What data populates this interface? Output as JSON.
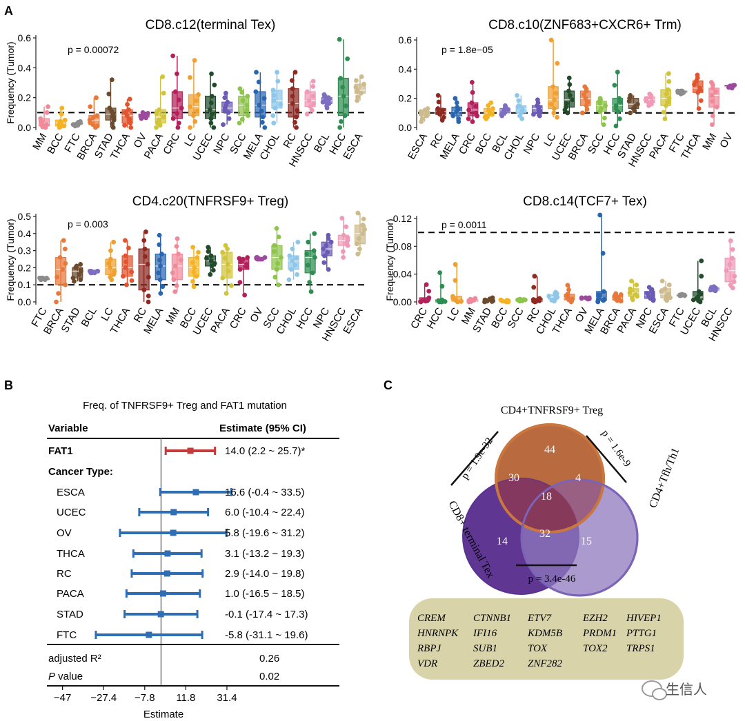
{
  "panel_labels": {
    "a": "A",
    "b": "B",
    "c": "C"
  },
  "chart_data": [
    {
      "type": "box",
      "title": "CD8.c12(terminal Tex)",
      "ylabel": "Frequency (Tumor)",
      "pvalue": "p = 0.00072",
      "ylim": [
        0,
        0.6
      ],
      "yticks": [
        "0.0",
        "0.2",
        "0.4",
        "0.6"
      ],
      "threshold": 0.1,
      "categories": [
        "MM",
        "BCC",
        "FTC",
        "BRCA",
        "STAD",
        "THCA",
        "OV",
        "PACA",
        "CRC",
        "LC",
        "UCEC",
        "NPC",
        "SCC",
        "MELA",
        "CHOL",
        "RC",
        "HNSCC",
        "BCL",
        "HCC",
        "ESCA"
      ],
      "colors": [
        "#F08A9A",
        "#F5B323",
        "#8C8C8C",
        "#E8793A",
        "#6B4A2E",
        "#E2542E",
        "#9B4A9E",
        "#D1C43A",
        "#B4205A",
        "#F0A030",
        "#214B2B",
        "#6C5BB6",
        "#8DC44A",
        "#2A66B0",
        "#8EC7EA",
        "#8E2A22",
        "#F09AB6",
        "#7D6EC0",
        "#2E8E52",
        "#CDBB8E"
      ],
      "stats": [
        [
          0.0,
          0.01,
          0.03,
          0.06,
          0.14
        ],
        [
          0.0,
          0.01,
          0.03,
          0.05,
          0.13
        ],
        [
          0.01,
          0.02,
          0.02,
          0.03,
          0.04
        ],
        [
          0.0,
          0.02,
          0.05,
          0.08,
          0.2
        ],
        [
          0.0,
          0.05,
          0.09,
          0.13,
          0.32
        ],
        [
          0.0,
          0.03,
          0.08,
          0.12,
          0.19
        ],
        [
          0.06,
          0.07,
          0.08,
          0.09,
          0.1
        ],
        [
          0.0,
          0.03,
          0.07,
          0.12,
          0.34
        ],
        [
          0.0,
          0.06,
          0.13,
          0.24,
          0.48
        ],
        [
          0.0,
          0.08,
          0.14,
          0.22,
          0.45
        ],
        [
          0.0,
          0.06,
          0.12,
          0.21,
          0.36
        ],
        [
          0.02,
          0.1,
          0.13,
          0.17,
          0.23
        ],
        [
          0.03,
          0.08,
          0.15,
          0.21,
          0.26
        ],
        [
          0.0,
          0.07,
          0.15,
          0.24,
          0.37
        ],
        [
          0.03,
          0.13,
          0.18,
          0.25,
          0.37
        ],
        [
          0.0,
          0.07,
          0.16,
          0.26,
          0.37
        ],
        [
          0.09,
          0.14,
          0.18,
          0.24,
          0.31
        ],
        [
          0.13,
          0.16,
          0.18,
          0.2,
          0.22
        ],
        [
          0.0,
          0.08,
          0.21,
          0.33,
          0.59
        ],
        [
          0.18,
          0.23,
          0.25,
          0.29,
          0.34
        ]
      ]
    },
    {
      "type": "box",
      "title": "CD8.c10(ZNF683+CXCR6+ Trm)",
      "ylabel": "",
      "pvalue": "p = 1.8e−05",
      "ylim": [
        0,
        0.6
      ],
      "yticks": [
        "0.0",
        "0.2",
        "0.4",
        "0.6"
      ],
      "threshold": 0.1,
      "categories": [
        "ESCA",
        "RC",
        "MELA",
        "CRC",
        "BCC",
        "BCL",
        "CHOL",
        "NPC",
        "LC",
        "UCEC",
        "BRCA",
        "SCC",
        "HCC",
        "STAD",
        "HNSCC",
        "PACA",
        "FTC",
        "THCA",
        "MM",
        "OV"
      ],
      "colors": [
        "#CDBB8E",
        "#8E2A22",
        "#2A66B0",
        "#B4205A",
        "#F5B323",
        "#7D6EC0",
        "#8EC7EA",
        "#6C5BB6",
        "#F0A030",
        "#214B2B",
        "#E8793A",
        "#8DC44A",
        "#2E8E52",
        "#6B4A2E",
        "#F09AB6",
        "#D1C43A",
        "#8C8C8C",
        "#E2542E",
        "#F08A9A",
        "#9B4A9E"
      ],
      "stats": [
        [
          0.04,
          0.08,
          0.1,
          0.11,
          0.13
        ],
        [
          0.05,
          0.09,
          0.11,
          0.13,
          0.22
        ],
        [
          0.04,
          0.08,
          0.11,
          0.14,
          0.2
        ],
        [
          0.04,
          0.08,
          0.12,
          0.17,
          0.31
        ],
        [
          0.06,
          0.08,
          0.1,
          0.13,
          0.17
        ],
        [
          0.08,
          0.1,
          0.12,
          0.13,
          0.15
        ],
        [
          0.06,
          0.1,
          0.13,
          0.15,
          0.22
        ],
        [
          0.08,
          0.1,
          0.13,
          0.15,
          0.19
        ],
        [
          0.07,
          0.13,
          0.19,
          0.28,
          0.6
        ],
        [
          0.1,
          0.14,
          0.19,
          0.25,
          0.34
        ],
        [
          0.1,
          0.15,
          0.2,
          0.25,
          0.28
        ],
        [
          0.02,
          0.11,
          0.15,
          0.18,
          0.2
        ],
        [
          0.01,
          0.11,
          0.15,
          0.2,
          0.38
        ],
        [
          0.1,
          0.13,
          0.16,
          0.2,
          0.22
        ],
        [
          0.15,
          0.17,
          0.19,
          0.21,
          0.23
        ],
        [
          0.06,
          0.15,
          0.2,
          0.26,
          0.37
        ],
        [
          0.23,
          0.24,
          0.24,
          0.25,
          0.25
        ],
        [
          0.13,
          0.24,
          0.27,
          0.32,
          0.36
        ],
        [
          0.02,
          0.14,
          0.22,
          0.27,
          0.31
        ],
        [
          0.27,
          0.28,
          0.28,
          0.29,
          0.29
        ]
      ]
    },
    {
      "type": "box",
      "title": "CD4.c20(TNFRSF9+ Treg)",
      "ylabel": "Frequency (Tumor)",
      "pvalue": "p = 0.003",
      "ylim": [
        0,
        0.5
      ],
      "yticks": [
        "0.0",
        "0.1",
        "0.2",
        "0.3",
        "0.4",
        "0.5"
      ],
      "threshold": 0.1,
      "categories": [
        "FTC",
        "BRCA",
        "STAD",
        "BCL",
        "LC",
        "THCA",
        "RC",
        "MELA",
        "MM",
        "BCC",
        "UCEC",
        "PACA",
        "CRC",
        "OV",
        "SCC",
        "CHOL",
        "HCC",
        "NPC",
        "HNSCC",
        "ESCA"
      ],
      "colors": [
        "#8C8C8C",
        "#E8793A",
        "#6B4A2E",
        "#7D6EC0",
        "#F0A030",
        "#E2542E",
        "#8E2A22",
        "#2A66B0",
        "#F08A9A",
        "#F5B323",
        "#214B2B",
        "#D1C43A",
        "#B4205A",
        "#9B4A9E",
        "#8DC44A",
        "#8EC7EA",
        "#2E8E52",
        "#6C5BB6",
        "#F09AB6",
        "#CDBB8E"
      ],
      "stats": [
        [
          0.13,
          0.13,
          0.14,
          0.14,
          0.14
        ],
        [
          0.0,
          0.1,
          0.19,
          0.26,
          0.36
        ],
        [
          0.12,
          0.14,
          0.18,
          0.2,
          0.22
        ],
        [
          0.17,
          0.17,
          0.18,
          0.18,
          0.18
        ],
        [
          0.13,
          0.16,
          0.2,
          0.25,
          0.35
        ],
        [
          0.1,
          0.15,
          0.2,
          0.27,
          0.36
        ],
        [
          0.0,
          0.07,
          0.22,
          0.31,
          0.41
        ],
        [
          0.05,
          0.13,
          0.21,
          0.28,
          0.39
        ],
        [
          0.06,
          0.13,
          0.21,
          0.28,
          0.37
        ],
        [
          0.09,
          0.15,
          0.2,
          0.26,
          0.32
        ],
        [
          0.16,
          0.21,
          0.24,
          0.27,
          0.32
        ],
        [
          0.05,
          0.14,
          0.22,
          0.29,
          0.33
        ],
        [
          0.04,
          0.19,
          0.22,
          0.25,
          0.26
        ],
        [
          0.25,
          0.25,
          0.25,
          0.26,
          0.26
        ],
        [
          0.1,
          0.19,
          0.26,
          0.33,
          0.43
        ],
        [
          0.13,
          0.19,
          0.24,
          0.27,
          0.35
        ],
        [
          0.06,
          0.17,
          0.26,
          0.3,
          0.4
        ],
        [
          0.19,
          0.27,
          0.31,
          0.35,
          0.39
        ],
        [
          0.26,
          0.33,
          0.36,
          0.39,
          0.49
        ],
        [
          0.28,
          0.34,
          0.4,
          0.45,
          0.52
        ]
      ]
    },
    {
      "type": "box",
      "title": "CD8.c14(TCF7+ Tex)",
      "ylabel": "Frequency (Tumor)",
      "pvalue": "p = 0.0011",
      "ylim": [
        0,
        0.12
      ],
      "yticks": [
        "0.00",
        "0.04",
        "0.08",
        "0.12"
      ],
      "threshold": 0.1,
      "categories": [
        "CRC",
        "HCC",
        "LC",
        "MM",
        "STAD",
        "BCC",
        "SCC",
        "RC",
        "CHOL",
        "THCA",
        "OV",
        "MELA",
        "BRCA",
        "PACA",
        "NPC",
        "ESCA",
        "FTC",
        "UCEC",
        "BCL",
        "HNSCC"
      ],
      "colors": [
        "#B4205A",
        "#2E8E52",
        "#F0A030",
        "#F08A9A",
        "#6B4A2E",
        "#F5B323",
        "#8DC44A",
        "#8E2A22",
        "#8EC7EA",
        "#E8793A",
        "#9B4A9E",
        "#2A66B0",
        "#E8793A",
        "#D1C43A",
        "#6C5BB6",
        "#CDBB8E",
        "#8C8C8C",
        "#214B2B",
        "#7D6EC0",
        "#F09AB6"
      ],
      "stats": [
        [
          0.0,
          0.001,
          0.002,
          0.006,
          0.025
        ],
        [
          0.0,
          0.0,
          0.001,
          0.003,
          0.042
        ],
        [
          0.0,
          0.001,
          0.003,
          0.008,
          0.054
        ],
        [
          0.0,
          0.001,
          0.002,
          0.003,
          0.005
        ],
        [
          0.0,
          0.001,
          0.002,
          0.003,
          0.006
        ],
        [
          0.0,
          0.0,
          0.001,
          0.002,
          0.003
        ],
        [
          0.001,
          0.002,
          0.003,
          0.003,
          0.004
        ],
        [
          0.0,
          0.001,
          0.002,
          0.005,
          0.037
        ],
        [
          0.001,
          0.004,
          0.007,
          0.01,
          0.014
        ],
        [
          0.0,
          0.003,
          0.006,
          0.011,
          0.024
        ],
        [
          0.004,
          0.005,
          0.005,
          0.006,
          0.006
        ],
        [
          0.0,
          0.002,
          0.006,
          0.015,
          0.125
        ],
        [
          0.001,
          0.003,
          0.005,
          0.009,
          0.012
        ],
        [
          0.003,
          0.008,
          0.013,
          0.019,
          0.03
        ],
        [
          0.002,
          0.005,
          0.01,
          0.015,
          0.021
        ],
        [
          0.002,
          0.006,
          0.011,
          0.019,
          0.03
        ],
        [
          0.009,
          0.009,
          0.01,
          0.01,
          0.011
        ],
        [
          0.0,
          0.003,
          0.007,
          0.015,
          0.059
        ],
        [
          0.016,
          0.017,
          0.018,
          0.02,
          0.022
        ],
        [
          0.02,
          0.029,
          0.045,
          0.063,
          0.088
        ]
      ]
    },
    {
      "type": "forest",
      "title": "Freq. of TNFRSF9+ Treg and FAT1 mutation",
      "header": {
        "variable": "Variable",
        "estimate": "Estimate (95% CI)"
      },
      "section_label": "Cancer Type:",
      "xlabel": "Estimate",
      "xlim": [
        -47,
        31.4
      ],
      "xticks": [
        "−47",
        "−27.4",
        "−7.8",
        "11.8",
        "31.4"
      ],
      "ref": 0,
      "rows": [
        {
          "label": "FAT1",
          "estimate": 14.0,
          "low": 2.2,
          "high": 25.7,
          "text": "14.0 (2.2 ~ 25.7)*",
          "color": "#C43B3B",
          "bold": true
        },
        {
          "label": "ESCA",
          "estimate": 16.6,
          "low": -0.4,
          "high": 33.5,
          "text": "16.6 (-0.4 ~ 33.5)",
          "color": "#2F6EB5"
        },
        {
          "label": "UCEC",
          "estimate": 6.0,
          "low": -10.4,
          "high": 22.4,
          "text": "6.0 (-10.4 ~ 22.4)",
          "color": "#2F6EB5"
        },
        {
          "label": "OV",
          "estimate": 5.8,
          "low": -19.6,
          "high": 31.2,
          "text": "5.8 (-19.6 ~ 31.2)",
          "color": "#2F6EB5"
        },
        {
          "label": "THCA",
          "estimate": 3.1,
          "low": -13.2,
          "high": 19.3,
          "text": "3.1 (-13.2 ~ 19.3)",
          "color": "#2F6EB5"
        },
        {
          "label": "RC",
          "estimate": 2.9,
          "low": -14.0,
          "high": 19.8,
          "text": "2.9 (-14.0 ~ 19.8)",
          "color": "#2F6EB5"
        },
        {
          "label": "PACA",
          "estimate": 1.0,
          "low": -16.5,
          "high": 18.5,
          "text": "1.0 (-16.5 ~ 18.5)",
          "color": "#2F6EB5"
        },
        {
          "label": "STAD",
          "estimate": -0.1,
          "low": -17.4,
          "high": 17.3,
          "text": "-0.1 (-17.4 ~ 17.3)",
          "color": "#2F6EB5"
        },
        {
          "label": "FTC",
          "estimate": -5.8,
          "low": -31.1,
          "high": 19.6,
          "text": "-5.8 (-31.1 ~ 19.6)",
          "color": "#2F6EB5"
        }
      ],
      "footer": [
        {
          "label": "adjusted R²",
          "value": "0.26"
        },
        {
          "label_italic": "P",
          "label_rest": " value",
          "value": "0.02"
        }
      ]
    }
  ],
  "venn": {
    "top_label": "CD4+TNFRSF9+ Treg",
    "left_label": "CD8+ terminal Tex",
    "right_label": "CD4+Tfh/Th1",
    "regions": {
      "top_only": "44",
      "left_only": "14",
      "right_only": "15",
      "top_left": "30",
      "top_right": "4",
      "left_right": "32",
      "center": "18"
    },
    "p_left": "p = 1.9e-32",
    "p_right": "p = 1.6e-9",
    "p_bottom": "p = 3.4e-46",
    "colors": {
      "top": "#B96A3E",
      "left": "#5A3190",
      "right": "#8D78BE",
      "overlap": "#8B3A58"
    }
  },
  "genes": [
    "CREM",
    "CTNNB1",
    "ETV7",
    "EZH2",
    "HIVEP1",
    "HNRNPK",
    "IFI16",
    "KDM5B",
    "PRDM1",
    "PTTG1",
    "RBPJ",
    "SUB1",
    "TOX",
    "TOX2",
    "TRPS1",
    "VDR",
    "ZBED2",
    "ZNF282"
  ],
  "watermark": "生信人"
}
